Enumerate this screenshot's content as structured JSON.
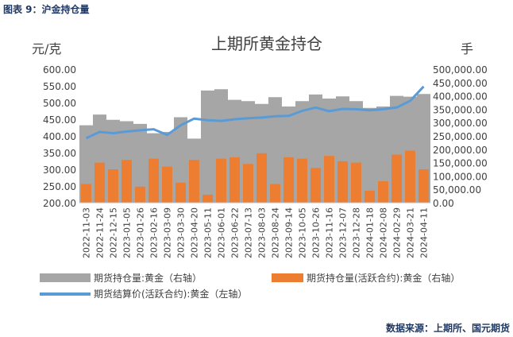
{
  "caption": "图表 9：沪金持仓量",
  "source": "数据来源：上期所、国元期货",
  "colors": {
    "caption": "#1f3864",
    "price_line": "#5b9bd5",
    "oi_total": "#a6a6a6",
    "oi_active": "#ed7d31",
    "axis_text": "#404040"
  },
  "chart_data": {
    "type": "bar",
    "title": "上期所黄金持仓",
    "ylabel_left": "元/克",
    "ylabel_right": "手",
    "ylim_left": [
      200,
      600
    ],
    "ylim_right": [
      0,
      500000
    ],
    "yticks_left": [
      "600.00",
      "550.00",
      "500.00",
      "450.00",
      "400.00",
      "350.00",
      "300.00",
      "250.00",
      "200.00"
    ],
    "yticks_right": [
      "500,000.00",
      "450,000.00",
      "400,000.00",
      "350,000.00",
      "300,000.00",
      "250,000.00",
      "200,000.00",
      "150,000.00",
      "100,000.00",
      "50,000.00",
      "0.00"
    ],
    "x_ticks": [
      "2022-11-03",
      "2022-11-24",
      "2022-12-15",
      "2023-01-05",
      "2023-01-26",
      "2023-02-16",
      "2023-03-09",
      "2023-03-30",
      "2023-04-20",
      "2023-05-11",
      "2023-06-01",
      "2023-06-22",
      "2023-07-13",
      "2023-08-03",
      "2023-08-24",
      "2023-09-14",
      "2023-10-05",
      "2023-10-26",
      "2023-11-16",
      "2023-12-07",
      "2023-12-28",
      "2024-01-18",
      "2024-02-08",
      "2024-02-29",
      "2024-03-21",
      "2024-04-11"
    ],
    "legend": [
      "期货持仓量:黄金（右轴）",
      "期货持仓量(活跃合约):黄金（右轴）",
      "期货结算价(活跃合约):黄金（左轴）"
    ],
    "series": [
      {
        "name": "期货持仓量:黄金（右轴）",
        "axis": "right",
        "type": "area",
        "values": [
          290000,
          330000,
          310000,
          305000,
          295000,
          260000,
          265000,
          320000,
          240000,
          420000,
          425000,
          385000,
          380000,
          370000,
          395000,
          360000,
          380000,
          405000,
          390000,
          398000,
          380000,
          355000,
          360000,
          400000,
          397000,
          407000
        ]
      },
      {
        "name": "期货持仓量(活跃合约):黄金（右轴）",
        "axis": "right",
        "type": "bar",
        "values": [
          70000,
          150000,
          125000,
          160000,
          60000,
          165000,
          135000,
          75000,
          160000,
          30000,
          165000,
          170000,
          145000,
          185000,
          70000,
          170000,
          165000,
          130000,
          175000,
          155000,
          150000,
          45000,
          80000,
          180000,
          195000,
          125000
        ]
      },
      {
        "name": "期货结算价(活跃合约):黄金（左轴）",
        "axis": "left",
        "type": "line",
        "values": [
          393,
          412,
          408,
          413,
          417,
          420,
          403,
          432,
          452,
          447,
          445,
          450,
          453,
          455,
          459,
          460,
          475,
          485,
          474,
          481,
          480,
          477,
          480,
          485,
          505,
          548
        ]
      }
    ]
  }
}
